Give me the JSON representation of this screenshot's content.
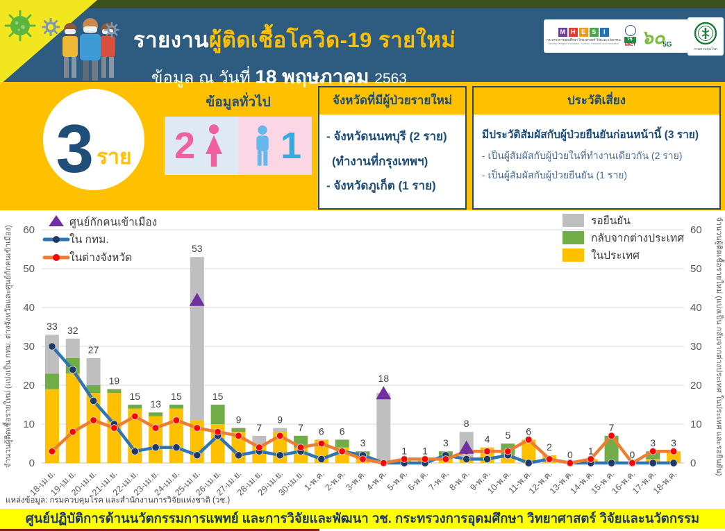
{
  "header": {
    "title_prefix": "รายงาน",
    "title_highlight": "ผู้ติดเชื้อโควิด-19 รายใหม่",
    "subtitle_prefix": "ข้อมูล ณ วันที่ ",
    "subtitle_date": "18 พฤษภาคม ",
    "subtitle_year": "2563",
    "logos": {
      "mhesi_letters": [
        "M",
        "H",
        "E",
        "S",
        "I"
      ],
      "mhesi_caption": "กระทรวงการอุดมศึกษา วิทยาศาสตร์ วิจัยและนวัตกรรม",
      "mhesi_caption_en": "Ministry of Higher Education, Science, Research and Innovation",
      "nrct_label": "วช.",
      "nrct_sub": "NRCT",
      "sixty_label": "๖๐",
      "sixty_sub": "5G",
      "ddc_label": "กรมควบคุมโรค"
    }
  },
  "summary": {
    "total_number": "3",
    "total_unit": "ราย",
    "general_info_title": "ข้อมูลทั่วไป",
    "female_count": "2",
    "male_count": "1"
  },
  "province_box": {
    "title": "จังหวัดที่มีผู้ป่วยรายใหม่",
    "lines": [
      "- จังหวัดนนทบุรี (2 ราย)",
      "(ทำงานที่กรุงเทพฯ)",
      "- จังหวัดภูเก็ต (1 ราย)"
    ]
  },
  "risk_box": {
    "title": "ประวัติเสี่ยง",
    "headline": "มีประวัติสัมผัสกับผู้ป่วยยืนยันก่อนหน้านี้ (3 ราย)",
    "lines": [
      "- เป็นผู้สัมผัสกับผู้ป่วยในที่ทำงานเดียวกัน (2 ราย)",
      "- เป็นผู้สัมผัสกับผู้ป่วยยืนยัน (1 ราย)"
    ]
  },
  "chart_data": {
    "type": "combo: stacked bar + line + triangle markers",
    "categories": [
      "18-เม.ย.",
      "19-เม.ย.",
      "20-เม.ย.",
      "21-เม.ย.",
      "22-เม.ย.",
      "23-เม.ย.",
      "24-เม.ย.",
      "25-เม.ย.",
      "26-เม.ย.",
      "27-เม.ย.",
      "28-เม.ย.",
      "29-เม.ย.",
      "30-เม.ย.",
      "1-พ.ค.",
      "2-พ.ค.",
      "3-พ.ค.",
      "4-พ.ค.",
      "5-พ.ค.",
      "6-พ.ค.",
      "7-พ.ค.",
      "8-พ.ค.",
      "9-พ.ค.",
      "10-พ.ค.",
      "11-พ.ค.",
      "12-พ.ค.",
      "13-พ.ค.",
      "14-พ.ค.",
      "15-พ.ค.",
      "16-พ.ค.",
      "17-พ.ค.",
      "18-พ.ค."
    ],
    "series": [
      {
        "name": "ในประเทศ",
        "type": "bar",
        "color": "#FFC000",
        "values": [
          19,
          23,
          18,
          18,
          14,
          12,
          14,
          11,
          10,
          8,
          5,
          8,
          4,
          6,
          4,
          2,
          0,
          1,
          1,
          1,
          1,
          4,
          2,
          6,
          2,
          0,
          1,
          0,
          0,
          1,
          3
        ]
      },
      {
        "name": "กลับจากต่างประเทศ",
        "type": "bar",
        "color": "#70AD47",
        "values": [
          4,
          4,
          2,
          1,
          1,
          1,
          1,
          0,
          5,
          1,
          0,
          0,
          3,
          0,
          2,
          1,
          0,
          0,
          0,
          2,
          0,
          0,
          3,
          0,
          0,
          0,
          0,
          7,
          0,
          2,
          0
        ]
      },
      {
        "name": "รอยืนยัน",
        "type": "bar",
        "color": "#BFBFBF",
        "values": [
          10,
          5,
          7,
          0,
          0,
          0,
          0,
          42,
          0,
          0,
          2,
          1,
          0,
          0,
          0,
          0,
          18,
          0,
          0,
          0,
          7,
          0,
          0,
          0,
          0,
          0,
          0,
          0,
          0,
          0,
          0
        ]
      },
      {
        "name": "ใน กทม.",
        "type": "line",
        "color": "#2E75B6",
        "marker": "#1F3864",
        "values": [
          30,
          24,
          16,
          10,
          3,
          4,
          4,
          2,
          7,
          2,
          3,
          2,
          3,
          1,
          3,
          2,
          0,
          0,
          0,
          2,
          1,
          1,
          2,
          0,
          1,
          0,
          0,
          0,
          0,
          0,
          0
        ]
      },
      {
        "name": "ในต่างจังหวัด",
        "type": "line",
        "color": "#ED7D31",
        "marker": "#FF0000",
        "values": [
          3,
          8,
          11,
          9,
          12,
          9,
          11,
          9,
          8,
          7,
          4,
          7,
          4,
          5,
          3,
          1,
          0,
          1,
          1,
          1,
          3,
          3,
          3,
          6,
          1,
          0,
          1,
          7,
          0,
          3,
          3
        ]
      },
      {
        "name": "ศูนย์กักคนเข้าเมือง",
        "type": "triangle",
        "color": "#7030A0",
        "values": [
          null,
          null,
          null,
          null,
          null,
          null,
          null,
          42,
          null,
          null,
          null,
          null,
          null,
          null,
          null,
          null,
          18,
          null,
          null,
          null,
          4,
          null,
          null,
          null,
          null,
          null,
          null,
          null,
          null,
          null,
          null
        ]
      }
    ],
    "total_labels": [
      33,
      32,
      27,
      19,
      15,
      13,
      15,
      53,
      15,
      9,
      7,
      9,
      7,
      6,
      6,
      3,
      18,
      1,
      1,
      3,
      8,
      4,
      5,
      6,
      2,
      0,
      1,
      7,
      0,
      3,
      3
    ],
    "ylim": [
      0,
      60
    ],
    "ytick_step": 10,
    "grid": true,
    "ylabel_left": "จำนวนผู้ติดเชื้อรายใหม่ (แบ่งเป็น กทม. ต่างจังหวัดและศูนย์กักคนเข้าเมือง)",
    "ylabel_right": "จำนวนผู้ติดเชื้อรายใหม่ (แบ่งเป็น กลับจากต่างประเทศ ในประเทศ และรอยืนยัน)",
    "legend_left": [
      "ศูนย์กักคนเข้าเมือง",
      "ใน กทม.",
      "ในต่างจังหวัด"
    ],
    "legend_right": [
      "รอยืนยัน",
      "กลับจากต่างประเทศ",
      "ในประเทศ"
    ],
    "legend_position": "top-left and top-right inside plot"
  },
  "source_line": "แหล่งข้อมูล: กรมควบคุมโรค และสำนักงานการวิจัยแห่งชาติ (วช.)",
  "footer": "ศูนย์ปฏิบัติการด้านนวัตกรรมการแพทย์ และการวิจัยและพัฒนา  วช.  กระทรวงการอุดมศึกษา วิทยาศาสตร์ วิจัยและนวัตกรรม"
}
